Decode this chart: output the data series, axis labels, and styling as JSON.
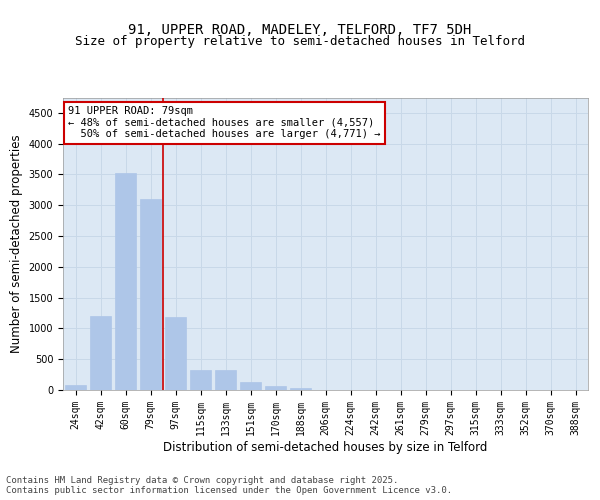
{
  "title_line1": "91, UPPER ROAD, MADELEY, TELFORD, TF7 5DH",
  "title_line2": "Size of property relative to semi-detached houses in Telford",
  "xlabel": "Distribution of semi-detached houses by size in Telford",
  "ylabel": "Number of semi-detached properties",
  "categories": [
    "24sqm",
    "42sqm",
    "60sqm",
    "79sqm",
    "97sqm",
    "115sqm",
    "133sqm",
    "151sqm",
    "170sqm",
    "188sqm",
    "206sqm",
    "224sqm",
    "242sqm",
    "261sqm",
    "279sqm",
    "297sqm",
    "315sqm",
    "333sqm",
    "352sqm",
    "370sqm",
    "388sqm"
  ],
  "values": [
    75,
    1200,
    3520,
    3100,
    1180,
    330,
    330,
    130,
    70,
    30,
    5,
    0,
    0,
    0,
    0,
    0,
    0,
    0,
    0,
    0,
    0
  ],
  "bar_color": "#aec6e8",
  "highlight_bar_index": 3,
  "highlight_line_color": "#cc0000",
  "annotation_text": "91 UPPER ROAD: 79sqm\n← 48% of semi-detached houses are smaller (4,557)\n  50% of semi-detached houses are larger (4,771) →",
  "annotation_box_color": "#ffffff",
  "annotation_box_edge_color": "#cc0000",
  "ylim": [
    0,
    4750
  ],
  "yticks": [
    0,
    500,
    1000,
    1500,
    2000,
    2500,
    3000,
    3500,
    4000,
    4500
  ],
  "grid_color": "#c8d8e8",
  "background_color": "#dce8f4",
  "footer_line1": "Contains HM Land Registry data © Crown copyright and database right 2025.",
  "footer_line2": "Contains public sector information licensed under the Open Government Licence v3.0.",
  "title_fontsize": 10,
  "subtitle_fontsize": 9,
  "axis_label_fontsize": 8.5,
  "tick_fontsize": 7,
  "footer_fontsize": 6.5
}
